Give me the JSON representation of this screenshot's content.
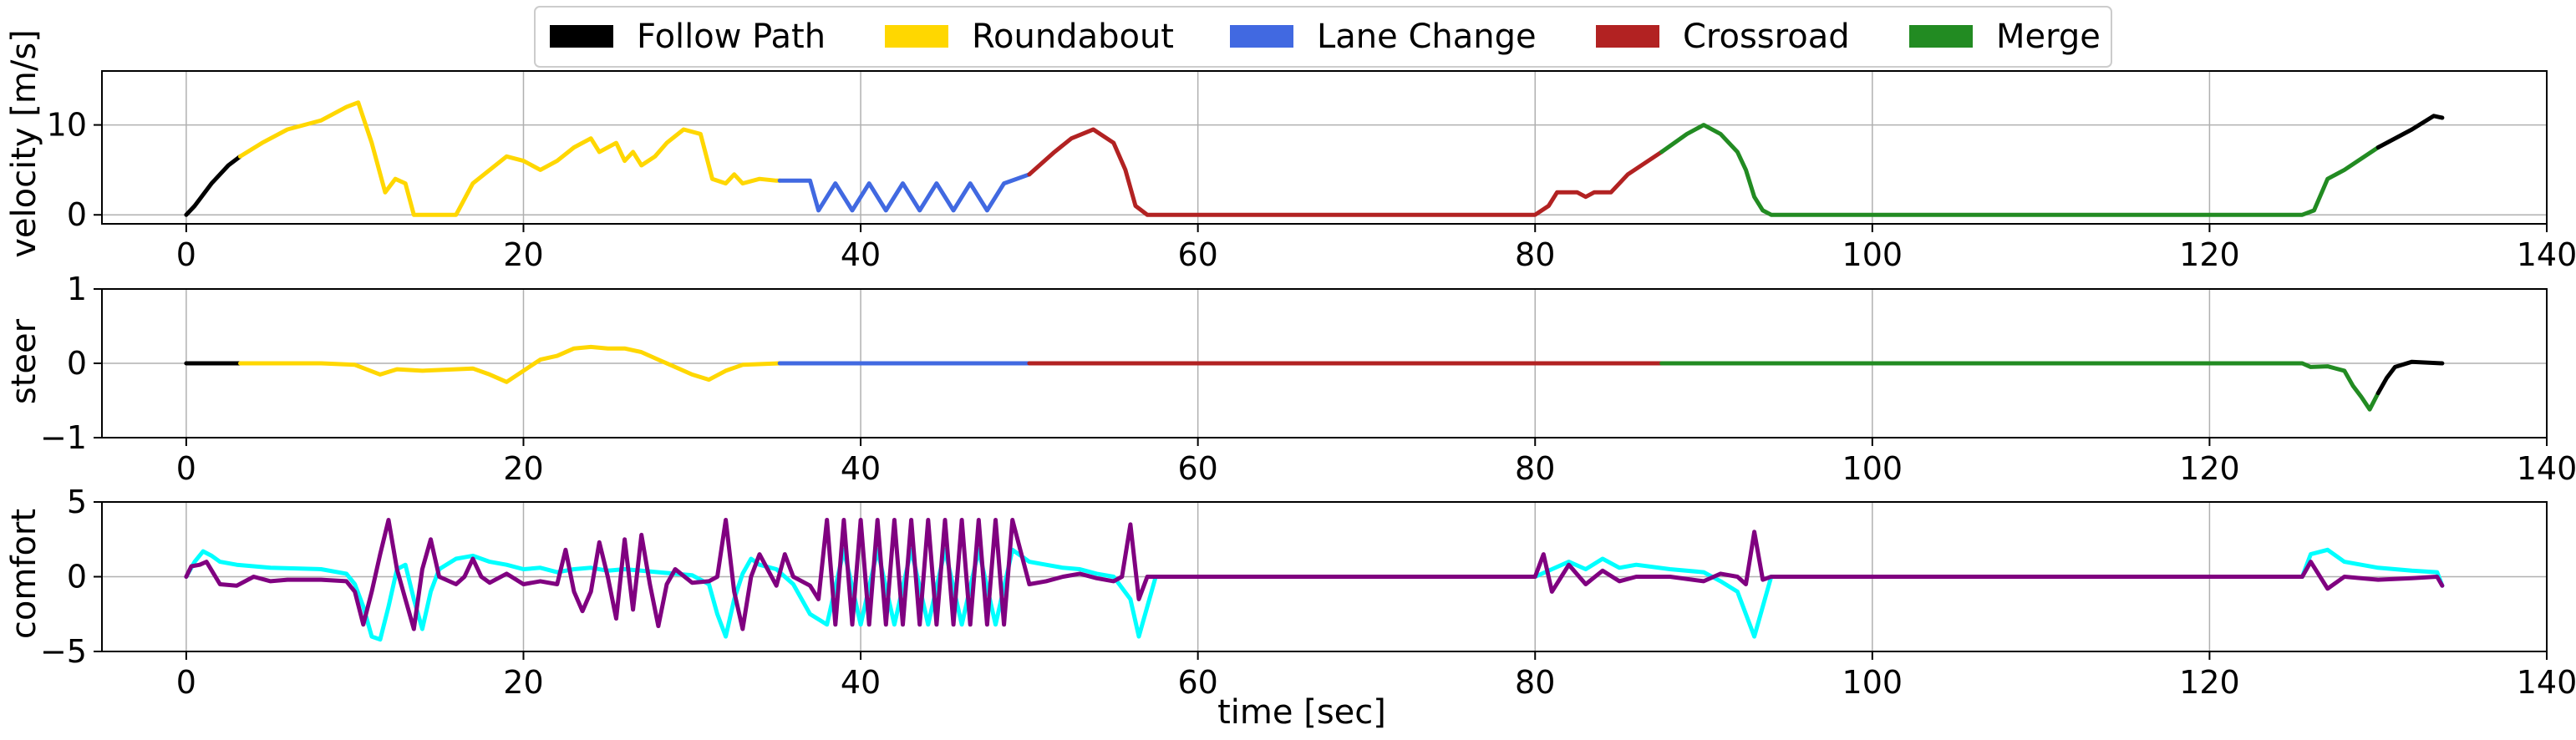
{
  "chart_data": {
    "type": "line",
    "legend": {
      "placement": "top-center",
      "entries": [
        {
          "label": "Follow Path",
          "color": "#000000"
        },
        {
          "label": "Roundabout",
          "color": "#FFD700"
        },
        {
          "label": "Lane Change",
          "color": "#4169E1"
        },
        {
          "label": "Crossroad",
          "color": "#B22222"
        },
        {
          "label": "Merge",
          "color": "#228B22"
        }
      ]
    },
    "xlabel": "time [sec]",
    "xlim": [
      -5,
      140
    ],
    "xticks": [
      0,
      20,
      40,
      60,
      80,
      100,
      120,
      140
    ],
    "grid": true,
    "segments": [
      {
        "scenario": "Follow Path",
        "t": [
          0,
          3.2
        ]
      },
      {
        "scenario": "Roundabout",
        "t": [
          3.2,
          35.2
        ]
      },
      {
        "scenario": "Lane Change",
        "t": [
          35.2,
          50
        ]
      },
      {
        "scenario": "Crossroad",
        "t": [
          50,
          87.5
        ]
      },
      {
        "scenario": "Merge",
        "t": [
          87.5,
          130
        ]
      },
      {
        "scenario": "Follow Path",
        "t": [
          130,
          133.8
        ]
      }
    ],
    "panels": [
      {
        "ylabel": "velocity [m/s]",
        "ylim": [
          -1,
          16
        ],
        "yticks": [
          0,
          10
        ],
        "series": [
          {
            "colored_by_scenario": true,
            "x": [
              0,
              0.5,
              1.5,
              2.5,
              3.2,
              4.5,
              6,
              8,
              9.5,
              10.2,
              11,
              11.8,
              12.4,
              13,
              13.5,
              16,
              17,
              18,
              19,
              20,
              21,
              22,
              23,
              24,
              24.5,
              25.5,
              26,
              26.5,
              27,
              27.8,
              28.5,
              29.5,
              30.5,
              31.2,
              32,
              32.5,
              33,
              34,
              35,
              35.2,
              36,
              37,
              37.5,
              38.5,
              39.5,
              40.5,
              41.5,
              42.5,
              43.5,
              44.5,
              45.5,
              46.5,
              47.5,
              48.5,
              50,
              51.5,
              52.5,
              53.8,
              55,
              55.7,
              56.3,
              57,
              58,
              60,
              70,
              80,
              80.8,
              81.3,
              82.5,
              83,
              83.5,
              84.5,
              85.5,
              87.5,
              89,
              90,
              91,
              92,
              92.5,
              93,
              93.5,
              94,
              100,
              110,
              120,
              125.5,
              126.2,
              127,
              128,
              130,
              132,
              133.3,
              133.8
            ],
            "y": [
              0,
              1,
              3.5,
              5.5,
              6.5,
              8,
              9.5,
              10.5,
              12,
              12.5,
              8,
              2.5,
              4,
              3.5,
              0,
              0,
              3.5,
              5,
              6.5,
              6,
              5,
              6,
              7.5,
              8.5,
              7,
              8,
              6,
              7,
              5.5,
              6.5,
              8,
              9.5,
              9,
              4,
              3.5,
              4.5,
              3.5,
              4,
              3.8,
              3.8,
              3.8,
              3.8,
              0.5,
              3.5,
              0.5,
              3.5,
              0.5,
              3.5,
              0.5,
              3.5,
              0.5,
              3.5,
              0.5,
              3.5,
              4.5,
              7,
              8.5,
              9.5,
              8,
              5,
              1,
              0,
              0,
              0,
              0,
              0,
              1,
              2.5,
              2.5,
              2,
              2.5,
              2.5,
              4.5,
              7,
              9,
              10,
              9,
              7,
              5,
              2,
              0.5,
              0,
              0,
              0,
              0,
              0,
              0.5,
              4,
              5,
              7.5,
              9.5,
              11,
              10.8
            ]
          }
        ]
      },
      {
        "ylabel": "steer",
        "ylim": [
          -1,
          1
        ],
        "yticks": [
          -1,
          0,
          1
        ],
        "series": [
          {
            "colored_by_scenario": true,
            "x": [
              0,
              3.2,
              6,
              8,
              10,
              11.5,
              12.5,
              14,
              16,
              17,
              18,
              19,
              20,
              21,
              22,
              23,
              24,
              25,
              26,
              27,
              28,
              29,
              30,
              31,
              32,
              33,
              35.2,
              50,
              87.5,
              125.5,
              126,
              127,
              128,
              128.5,
              129,
              129.5,
              130,
              130.5,
              131,
              132,
              133.8
            ],
            "y": [
              0,
              0,
              0,
              0,
              -0.02,
              -0.15,
              -0.08,
              -0.1,
              -0.08,
              -0.07,
              -0.15,
              -0.25,
              -0.1,
              0.05,
              0.1,
              0.2,
              0.22,
              0.2,
              0.2,
              0.15,
              0.05,
              -0.05,
              -0.15,
              -0.22,
              -0.1,
              -0.02,
              0,
              0,
              0,
              0,
              -0.05,
              -0.04,
              -0.1,
              -0.3,
              -0.45,
              -0.62,
              -0.4,
              -0.2,
              -0.05,
              0.02,
              0
            ]
          }
        ]
      },
      {
        "ylabel": "comfort",
        "ylim": [
          -5,
          5
        ],
        "yticks": [
          -5,
          0,
          5
        ],
        "series": [
          {
            "name": "",
            "color": "#00FFFF",
            "x": [
              0,
              0.5,
              1,
              1.5,
              2,
              3,
              5,
              8,
              9.5,
              10,
              10.5,
              11,
              11.5,
              12,
              12.5,
              13,
              13.5,
              14,
              14.5,
              15,
              16,
              17,
              18,
              19,
              20,
              21,
              22,
              23,
              24,
              25,
              26,
              27,
              28,
              29,
              30,
              31,
              31.5,
              32,
              32.5,
              33,
              33.5,
              34,
              35,
              36,
              37,
              38,
              39,
              40,
              41,
              42,
              43,
              44,
              45,
              46,
              47,
              48,
              49,
              50,
              51,
              52,
              53,
              54,
              55,
              56,
              56.5,
              57,
              57.5,
              58,
              60,
              80,
              81,
              82,
              83,
              84,
              85,
              86,
              88,
              90,
              91,
              92,
              92.5,
              93,
              93.5,
              94,
              100,
              125.5,
              126,
              127,
              128,
              130,
              132,
              133.5,
              133.8
            ],
            "y": [
              0,
              1,
              1.7,
              1.4,
              1,
              0.8,
              0.6,
              0.5,
              0.2,
              -0.5,
              -2,
              -4,
              -4.2,
              -2,
              0.5,
              0.8,
              -1.5,
              -3.5,
              -1,
              0.5,
              1.2,
              1.4,
              1,
              0.8,
              0.5,
              0.6,
              0.3,
              0.5,
              0.6,
              0.4,
              0.5,
              0.4,
              0.3,
              0.2,
              0.1,
              -0.5,
              -2.5,
              -4,
              -1.5,
              0.2,
              1.2,
              0.8,
              0.5,
              -0.5,
              -2.5,
              -3.2,
              1.8,
              -3.2,
              1.8,
              -3.2,
              1.8,
              -3.2,
              1.8,
              -3.2,
              1.8,
              -3.2,
              1.8,
              1,
              0.8,
              0.6,
              0.5,
              0.2,
              0,
              -1.5,
              -4,
              -2,
              0,
              0,
              0,
              0,
              0.5,
              1,
              0.5,
              1.2,
              0.6,
              0.8,
              0.5,
              0.3,
              -0.3,
              -1,
              -2.5,
              -4,
              -2,
              0,
              0,
              0,
              1.5,
              1.8,
              1,
              0.6,
              0.4,
              0.3,
              -0.6
            ]
          },
          {
            "name": "",
            "color": "#800080",
            "x": [
              0,
              0.3,
              0.8,
              1.2,
              2,
              3,
              4,
              5,
              6,
              8,
              9.5,
              10,
              10.5,
              11,
              11.5,
              12,
              12.5,
              13,
              13.5,
              14,
              14.5,
              15,
              16,
              16.5,
              17,
              17.5,
              18,
              19,
              20,
              21,
              22,
              22.5,
              23,
              23.5,
              24,
              24.5,
              25,
              25.5,
              26,
              26.5,
              27,
              27.5,
              28,
              28.5,
              29,
              30,
              31,
              31.5,
              32,
              32.5,
              33,
              33.5,
              34,
              35,
              35.5,
              36,
              37,
              37.5,
              38,
              38.5,
              39,
              39.5,
              40,
              40.5,
              41,
              41.5,
              42,
              42.5,
              43,
              43.5,
              44,
              44.5,
              45,
              45.5,
              46,
              46.5,
              47,
              47.5,
              48,
              48.5,
              49,
              50,
              51,
              52,
              53,
              54,
              55,
              55.5,
              56,
              56.5,
              57,
              58,
              80,
              80.5,
              81,
              82,
              83,
              84,
              85,
              86,
              88,
              90,
              91,
              92,
              92.5,
              93,
              93.5,
              94,
              100,
              125.5,
              126,
              127,
              128,
              130,
              132,
              133.5,
              133.8
            ],
            "y": [
              0,
              0.7,
              0.8,
              1,
              -0.5,
              -0.6,
              0,
              -0.3,
              -0.2,
              -0.2,
              -0.3,
              -1,
              -3.2,
              -1,
              1.5,
              3.8,
              0.5,
              -1.5,
              -3.5,
              0.5,
              2.5,
              0,
              -0.5,
              0,
              1.2,
              0,
              -0.4,
              0.2,
              -0.5,
              -0.3,
              -0.5,
              1.8,
              -1,
              -2.3,
              -1,
              2.3,
              0,
              -2.8,
              2.5,
              -2.2,
              2.8,
              -0.5,
              -3.3,
              -0.5,
              0.5,
              -0.4,
              -0.3,
              0,
              3.8,
              -1,
              -3.5,
              0,
              1.5,
              -0.6,
              1.5,
              0,
              -0.6,
              -1.5,
              3.8,
              -3.2,
              3.8,
              -3.2,
              3.8,
              -3.2,
              3.8,
              -3.2,
              3.8,
              -3.2,
              3.8,
              -3.2,
              3.8,
              -3.2,
              3.8,
              -3.2,
              3.8,
              -3.2,
              3.8,
              -3.2,
              3.8,
              -3.2,
              3.8,
              -0.5,
              -0.3,
              0,
              0.2,
              -0.1,
              -0.3,
              0,
              3.5,
              -1.5,
              0,
              0,
              0,
              1.5,
              -1,
              0.8,
              -0.5,
              0.4,
              -0.3,
              0,
              0,
              -0.3,
              0.2,
              0,
              -0.5,
              3,
              -0.2,
              0,
              0,
              0,
              1,
              -0.8,
              0,
              -0.2,
              -0.1,
              0,
              -0.6
            ]
          }
        ]
      }
    ]
  }
}
